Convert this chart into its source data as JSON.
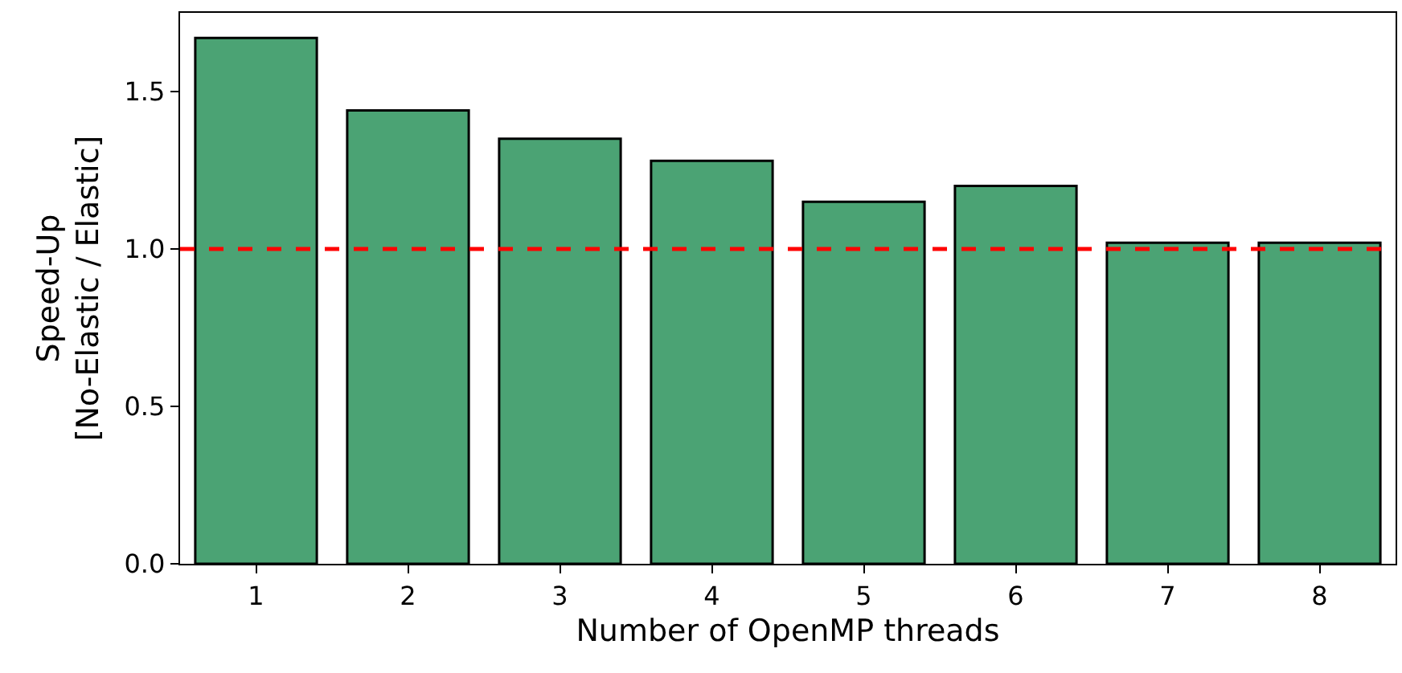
{
  "chart_data": {
    "type": "bar",
    "xlabel": "Number of OpenMP threads",
    "ylabel": "Speed-Up\n[No-Elastic / Elastic]",
    "categories": [
      "1",
      "2",
      "3",
      "4",
      "5",
      "6",
      "7",
      "8"
    ],
    "values": [
      1.67,
      1.44,
      1.35,
      1.28,
      1.15,
      1.2,
      1.02,
      1.02
    ],
    "color": "#4ba374",
    "ylim": [
      0,
      1.75
    ],
    "yticks": [
      {
        "value": 0,
        "label": "0.0"
      },
      {
        "value": 0.5,
        "label": "0.5"
      },
      {
        "value": 1,
        "label": "1.0"
      },
      {
        "value": 1.5,
        "label": "1.5"
      }
    ],
    "ref_lines": [
      {
        "axis": "y",
        "value": 1,
        "color": "#ff0000",
        "line_style": "dashed"
      }
    ],
    "grid": false,
    "legend": false
  }
}
